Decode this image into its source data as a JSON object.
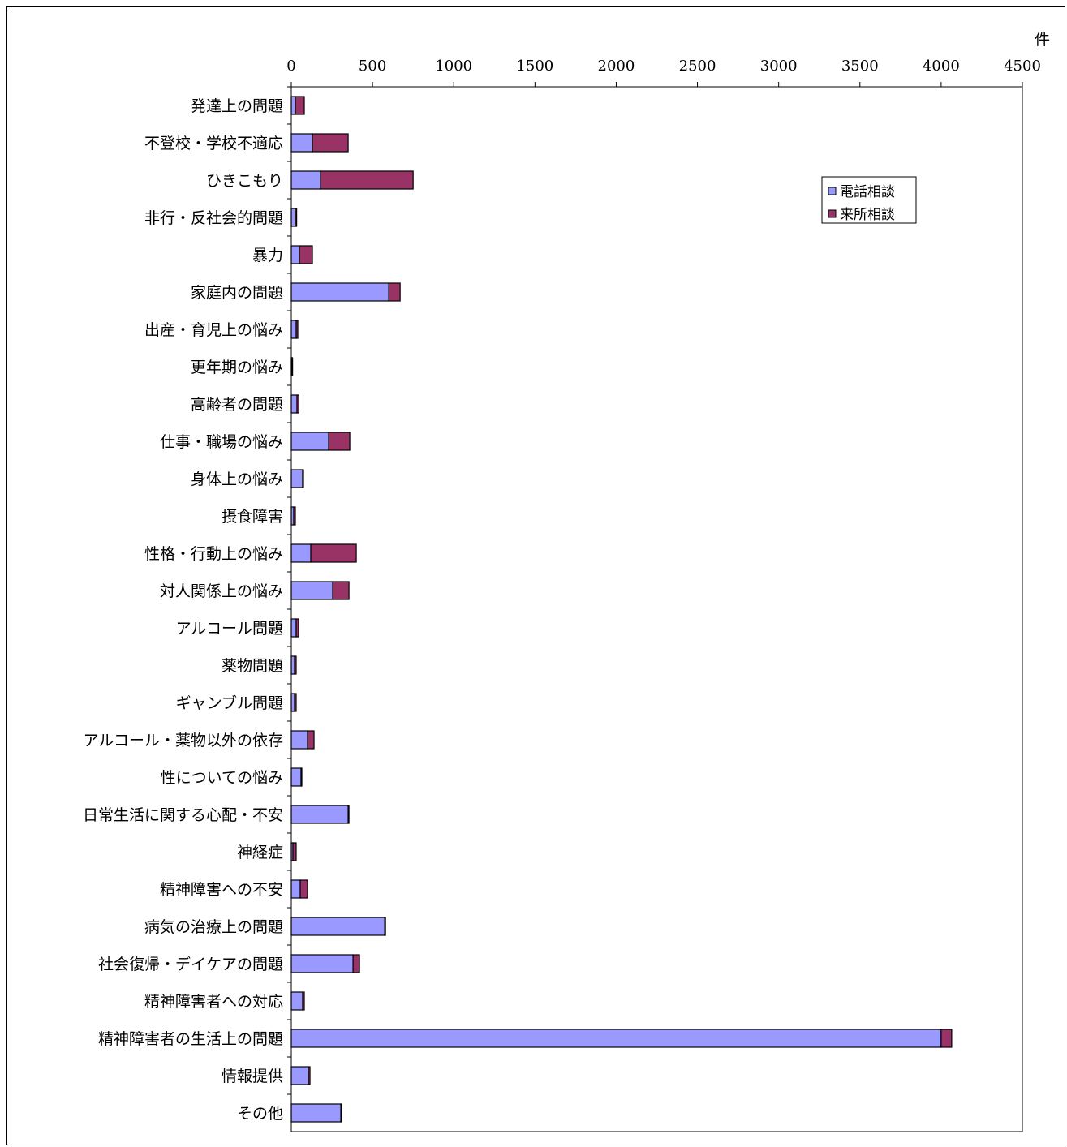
{
  "chart_data": {
    "type": "bar",
    "orientation": "horizontal",
    "stacked": true,
    "unit": "件",
    "xlim": [
      0,
      4500
    ],
    "xticks": [
      0,
      500,
      1000,
      1500,
      2000,
      2500,
      3000,
      3500,
      4000,
      4500
    ],
    "x_axis_position": "top",
    "grid": false,
    "legend_position": "top-right",
    "categories": [
      "発達上の問題",
      "不登校・学校不適応",
      "ひきこもり",
      "非行・反社会的問題",
      "暴力",
      "家庭内の問題",
      "出産・育児上の悩み",
      "更年期の悩み",
      "高齢者の問題",
      "仕事・職場の悩み",
      "身体上の悩み",
      "摂食障害",
      "性格・行動上の悩み",
      "対人関係上の悩み",
      "アルコール問題",
      "薬物問題",
      "ギャンブル問題",
      "アルコール・薬物以外の依存",
      "性についての悩み",
      "日常生活に関する心配・不安",
      "神経症",
      "精神障害への不安",
      "病気の治療上の問題",
      "社会復帰・デイケアの問題",
      "精神障害者への対応",
      "精神障害者の生活上の問題",
      "情報提供",
      "その他"
    ],
    "series": [
      {
        "name": "電話相談",
        "color": "#9999ff",
        "values": [
          25,
          130,
          180,
          25,
          50,
          600,
          30,
          5,
          35,
          230,
          70,
          15,
          120,
          255,
          30,
          20,
          20,
          100,
          60,
          350,
          10,
          55,
          575,
          380,
          70,
          4000,
          105,
          305
        ]
      },
      {
        "name": "来所相談",
        "color": "#993366",
        "values": [
          55,
          220,
          570,
          8,
          80,
          70,
          10,
          3,
          12,
          130,
          5,
          10,
          280,
          100,
          15,
          10,
          10,
          40,
          5,
          5,
          20,
          45,
          5,
          40,
          10,
          65,
          10,
          5
        ]
      }
    ]
  }
}
